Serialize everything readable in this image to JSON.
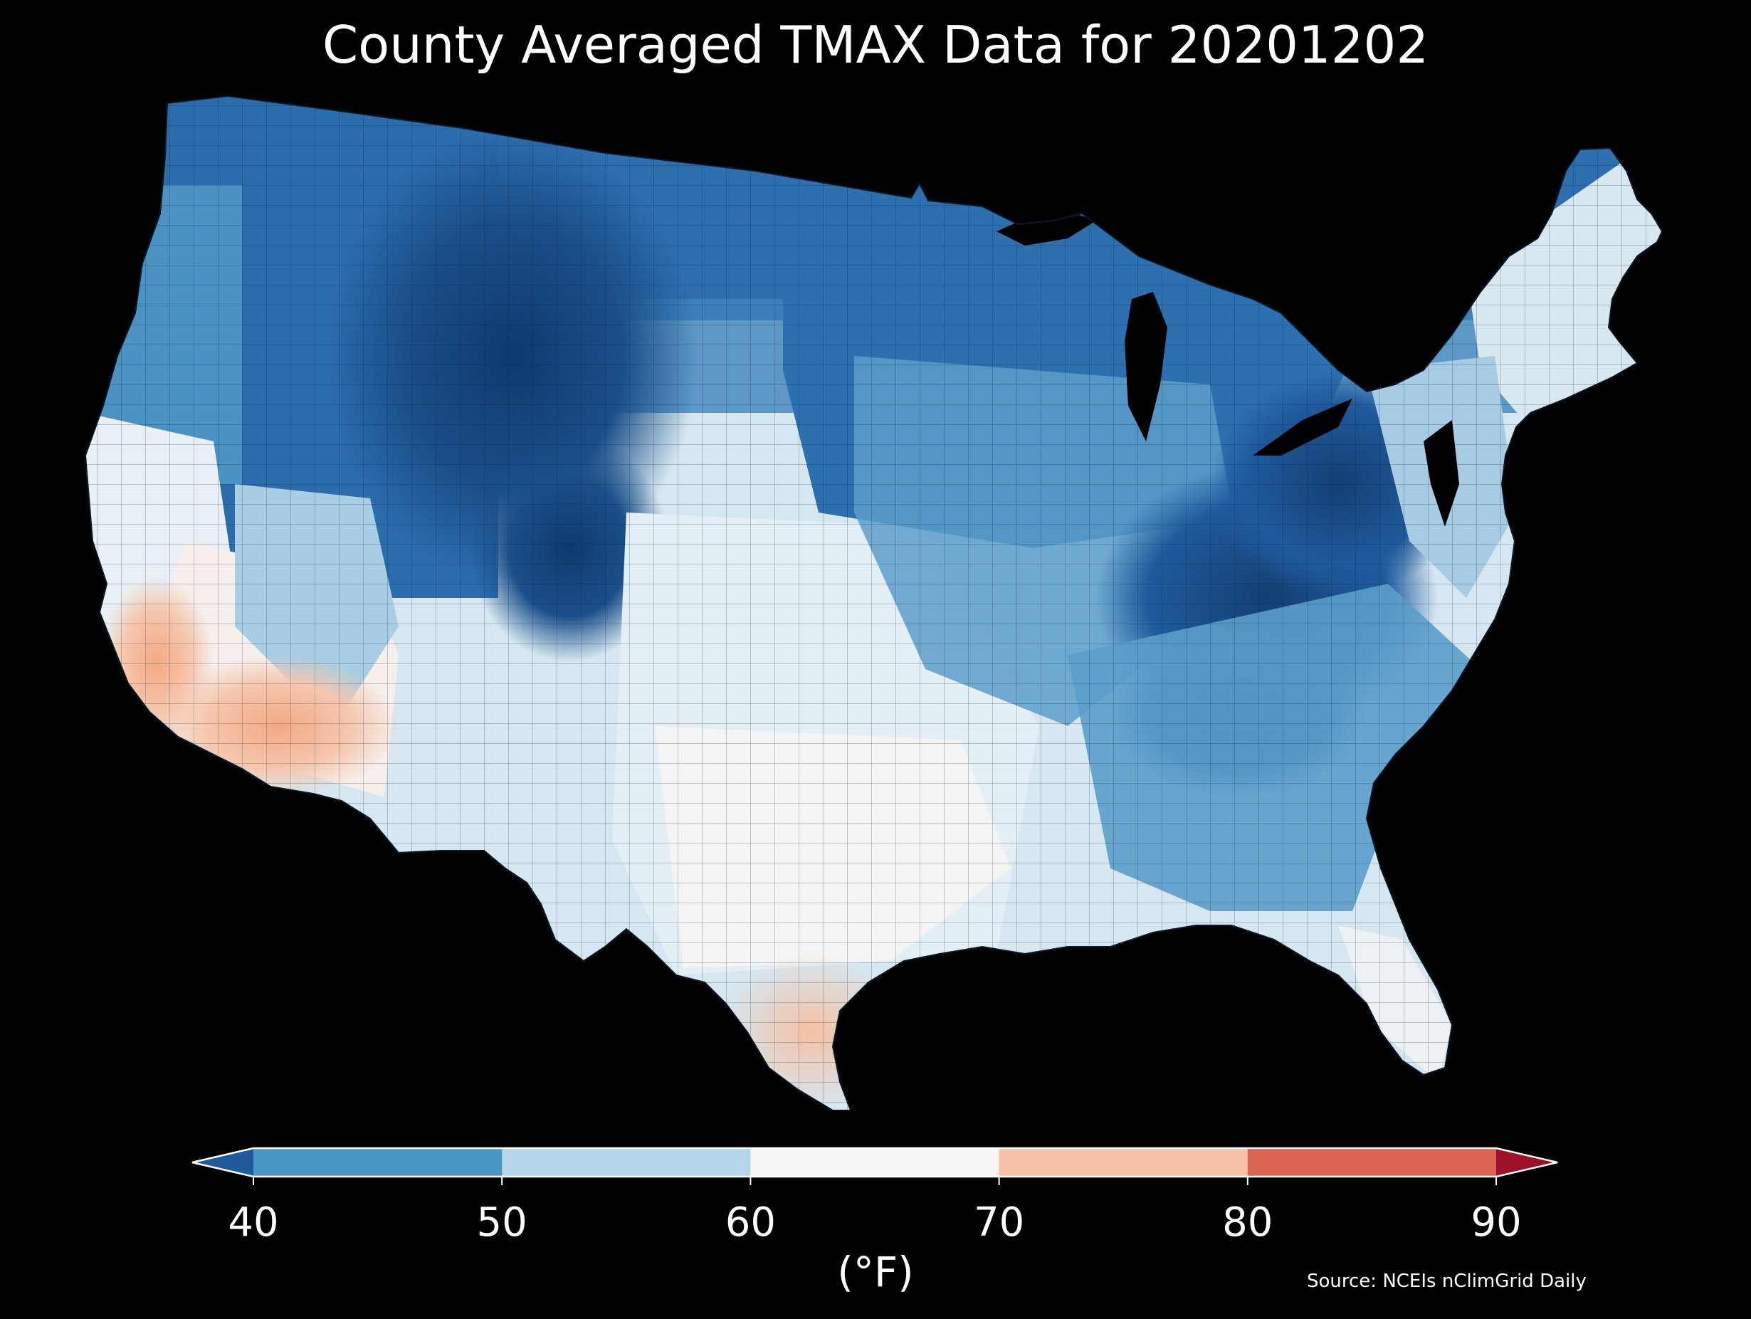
{
  "title": "County Averaged TMAX Data for 20201202",
  "map": {
    "region": "Contiguous United States",
    "background_color": "#000000",
    "county_border_color": "#0b1a2a",
    "color_scale": "RdBu_r"
  },
  "colorbar": {
    "units": "(°F)",
    "ticks": [
      "40",
      "50",
      "60",
      "70",
      "80",
      "90"
    ],
    "bins": [
      {
        "range": "<40",
        "color": "#1f5a9c"
      },
      {
        "range": "40-50",
        "color": "#4a96c6"
      },
      {
        "range": "50-60",
        "color": "#b5d6ea"
      },
      {
        "range": "60-70",
        "color": "#f7f6f5"
      },
      {
        "range": "70-80",
        "color": "#f7c2a5"
      },
      {
        "range": "80-90",
        "color": "#dc6453"
      },
      {
        "range": ">90",
        "color": "#9d1227"
      }
    ]
  },
  "source": "Source: NCEIs nClimGrid Daily"
}
